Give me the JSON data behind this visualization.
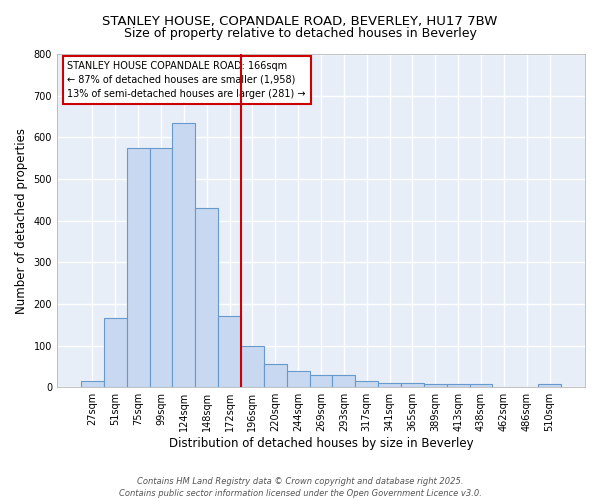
{
  "title1": "STANLEY HOUSE, COPANDALE ROAD, BEVERLEY, HU17 7BW",
  "title2": "Size of property relative to detached houses in Beverley",
  "xlabel": "Distribution of detached houses by size in Beverley",
  "ylabel": "Number of detached properties",
  "bar_values": [
    15,
    165,
    575,
    575,
    635,
    430,
    170,
    100,
    55,
    40,
    30,
    30,
    15,
    10,
    10,
    7,
    7,
    7,
    0,
    0,
    7
  ],
  "bar_labels": [
    "27sqm",
    "51sqm",
    "75sqm",
    "99sqm",
    "124sqm",
    "148sqm",
    "172sqm",
    "196sqm",
    "220sqm",
    "244sqm",
    "269sqm",
    "293sqm",
    "317sqm",
    "341sqm",
    "365sqm",
    "389sqm",
    "413sqm",
    "438sqm",
    "462sqm",
    "486sqm",
    "510sqm"
  ],
  "bar_color": "#c8d8f0",
  "bar_edge_color": "#6699cc",
  "background_color": "#ffffff",
  "plot_bg_color": "#e8eef8",
  "grid_color": "#ffffff",
  "vline_x": 6.5,
  "vline_color": "#cc0000",
  "annotation_text": "STANLEY HOUSE COPANDALE ROAD: 166sqm\n← 87% of detached houses are smaller (1,958)\n13% of semi-detached houses are larger (281) →",
  "annotation_box_color": "#ffffff",
  "annotation_box_edge": "#cc0000",
  "ylim": [
    0,
    800
  ],
  "yticks": [
    0,
    100,
    200,
    300,
    400,
    500,
    600,
    700,
    800
  ],
  "footer_text": "Contains HM Land Registry data © Crown copyright and database right 2025.\nContains public sector information licensed under the Open Government Licence v3.0.",
  "title_fontsize": 9.5,
  "subtitle_fontsize": 9,
  "ylabel_fontsize": 8.5,
  "xlabel_fontsize": 8.5,
  "tick_fontsize": 7,
  "annot_fontsize": 7,
  "footer_fontsize": 6
}
